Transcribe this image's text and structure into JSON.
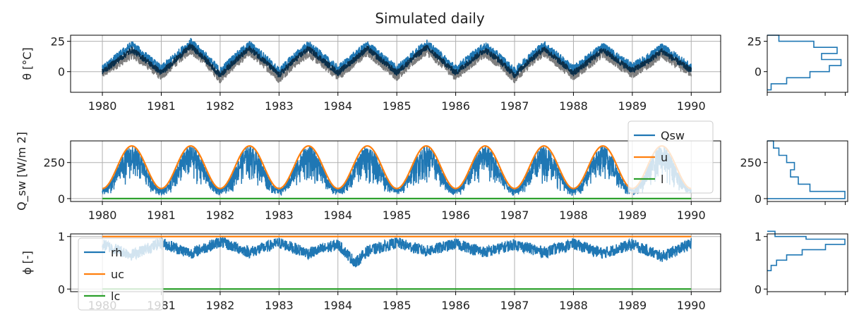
{
  "title": "Simulated daily",
  "colors": {
    "blue": "#1f77b4",
    "orange": "#ff7f0e",
    "green": "#2ca02c",
    "gray": "#7f7f7f",
    "dark": "#0b2f4a",
    "grid": "#b0b0b0"
  },
  "chart_data": [
    {
      "type": "line",
      "ylabel": "θ [°C]",
      "xlim": [
        1979.46,
        1990.5
      ],
      "ylim": [
        -17,
        30
      ],
      "xticks": [
        1980,
        1981,
        1982,
        1983,
        1984,
        1985,
        1986,
        1987,
        1988,
        1989,
        1990
      ],
      "yticks": [
        0,
        25
      ],
      "grid": true,
      "x": [
        1980.0,
        1980.25,
        1980.5,
        1980.75,
        1981.0,
        1981.25,
        1981.5,
        1981.75,
        1982.0,
        1982.25,
        1982.5,
        1982.75,
        1983.0,
        1983.25,
        1983.5,
        1983.75,
        1984.0,
        1984.25,
        1984.5,
        1984.75,
        1985.0,
        1985.25,
        1985.5,
        1985.75,
        1986.0,
        1986.25,
        1986.5,
        1986.75,
        1987.0,
        1987.25,
        1987.5,
        1987.75,
        1988.0,
        1988.25,
        1988.5,
        1988.75,
        1989.0,
        1989.25,
        1989.5,
        1989.75,
        1990.0
      ],
      "series": [
        {
          "color": "gray",
          "values": [
            -2,
            6,
            14,
            6,
            -4,
            8,
            18,
            8,
            -6,
            6,
            16,
            6,
            -6,
            6,
            15,
            6,
            -4,
            6,
            16,
            6,
            -4,
            7,
            17,
            7,
            -4,
            6,
            15,
            6,
            -6,
            6,
            16,
            6,
            -4,
            5,
            15,
            6,
            -2,
            5,
            14,
            6,
            -1
          ]
        },
        {
          "color": "blue",
          "values": [
            2,
            12,
            22,
            12,
            2,
            13,
            24,
            13,
            0,
            12,
            22,
            12,
            0,
            12,
            22,
            12,
            2,
            12,
            22,
            12,
            2,
            13,
            23,
            13,
            2,
            12,
            21,
            12,
            0,
            12,
            22,
            12,
            2,
            11,
            21,
            12,
            4,
            11,
            20,
            12,
            3
          ]
        },
        {
          "color": "dark",
          "values": [
            0,
            9,
            18,
            9,
            -1,
            10,
            21,
            10,
            -3,
            9,
            19,
            9,
            -3,
            9,
            19,
            9,
            -1,
            9,
            19,
            9,
            -1,
            10,
            20,
            10,
            -1,
            9,
            18,
            9,
            -3,
            9,
            19,
            9,
            -1,
            8,
            18,
            9,
            1,
            8,
            17,
            9,
            1
          ]
        }
      ],
      "hist": {
        "bins": [
          -15,
          -10,
          -5,
          0,
          5,
          10,
          15,
          20,
          25
        ],
        "counts": [
          0.05,
          0.25,
          0.55,
          0.8,
          0.95,
          0.7,
          0.9,
          0.6,
          0.15
        ]
      }
    },
    {
      "type": "line",
      "ylabel": "Q_sw [W/m 2]",
      "xlim": [
        1979.46,
        1990.5
      ],
      "ylim": [
        -20,
        400
      ],
      "xticks": [
        1980,
        1981,
        1982,
        1983,
        1984,
        1985,
        1986,
        1987,
        1988,
        1989,
        1990
      ],
      "yticks": [
        0,
        250
      ],
      "grid": true,
      "legend_location": "top-right",
      "series": [
        {
          "name": "Qsw",
          "color": "blue",
          "min": 30,
          "peak": 370
        },
        {
          "name": "u",
          "color": "orange",
          "min": 70,
          "max": 365
        },
        {
          "name": "l",
          "color": "green",
          "value": 0
        }
      ],
      "hist": {
        "bins": [
          0,
          50,
          100,
          150,
          200,
          250,
          300,
          350
        ],
        "counts": [
          1.0,
          0.55,
          0.4,
          0.3,
          0.35,
          0.25,
          0.15,
          0.08
        ]
      }
    },
    {
      "type": "line",
      "ylabel": "ϕ [-]",
      "xlim": [
        1979.46,
        1990.5
      ],
      "ylim": [
        -0.05,
        1.05
      ],
      "xticks": [
        1980,
        1981,
        1982,
        1983,
        1984,
        1985,
        1986,
        1987,
        1988,
        1989,
        1990
      ],
      "yticks": [
        0,
        1
      ],
      "grid": true,
      "legend_location": "bottom-left",
      "series": [
        {
          "name": "rh",
          "color": "blue",
          "x": [
            1980.0,
            1980.5,
            1981.0,
            1981.5,
            1982.0,
            1982.5,
            1983.0,
            1983.5,
            1984.0,
            1984.3,
            1984.5,
            1985.0,
            1985.5,
            1986.0,
            1986.5,
            1987.0,
            1987.5,
            1988.0,
            1988.5,
            1989.0,
            1989.5,
            1990.0
          ],
          "values": [
            0.85,
            0.65,
            0.88,
            0.68,
            0.9,
            0.7,
            0.88,
            0.68,
            0.85,
            0.5,
            0.72,
            0.88,
            0.72,
            0.86,
            0.7,
            0.85,
            0.7,
            0.86,
            0.68,
            0.85,
            0.62,
            0.86
          ]
        },
        {
          "name": "uc",
          "color": "orange",
          "value": 1
        },
        {
          "name": "lc",
          "color": "green",
          "value": 0
        }
      ],
      "hist": {
        "bins": [
          0.35,
          0.45,
          0.55,
          0.65,
          0.75,
          0.85,
          0.95,
          1.0
        ],
        "counts": [
          0.05,
          0.12,
          0.25,
          0.45,
          0.75,
          1.0,
          0.5,
          0.1
        ]
      }
    }
  ]
}
